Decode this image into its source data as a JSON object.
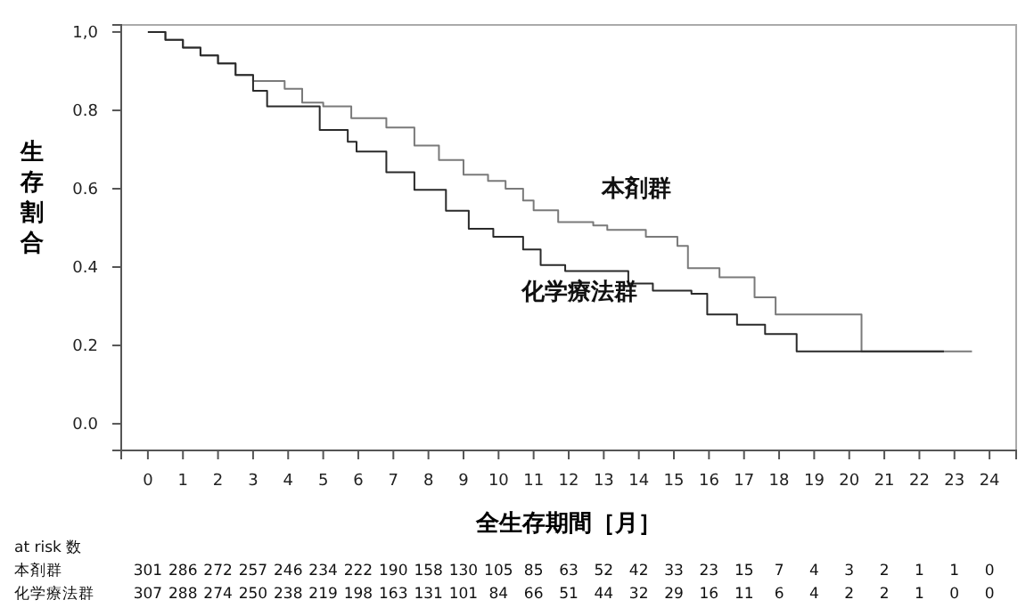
{
  "chart_data": {
    "type": "step",
    "xlabel": "全生存期間［月］",
    "ylabel": "生存割合",
    "xlim": [
      -0.76,
      24.76
    ],
    "ylim": [
      -0.068,
      1.018
    ],
    "xticks": [
      0,
      1,
      2,
      3,
      4,
      5,
      6,
      7,
      8,
      9,
      10,
      11,
      12,
      13,
      14,
      15,
      16,
      17,
      18,
      19,
      20,
      21,
      22,
      23,
      24
    ],
    "yticks": [
      {
        "value": 0,
        "label": "0.0"
      },
      {
        "value": 0.2,
        "label": "0.2"
      },
      {
        "value": 0.4,
        "label": "0.4"
      },
      {
        "value": 0.6,
        "label": "0.6"
      },
      {
        "value": 0.8,
        "label": "0.8"
      },
      {
        "value": 1,
        "label": "1,0"
      }
    ],
    "grid": false,
    "series": [
      {
        "name": "本剤群",
        "color": "#7a7a7a",
        "x": [
          0,
          0.5,
          1,
          1.5,
          2,
          2.5,
          3,
          3.9,
          4.4,
          5,
          5.8,
          6.8,
          7.6,
          8.3,
          9,
          9.7,
          10.2,
          10.7,
          11,
          11.7,
          12.7,
          13.1,
          14.2,
          15.1,
          15.4,
          16.3,
          17.3,
          17.9,
          20.35,
          23.5
        ],
        "values": [
          1,
          0.98,
          0.96,
          0.94,
          0.92,
          0.89,
          0.875,
          0.855,
          0.82,
          0.81,
          0.78,
          0.756,
          0.71,
          0.673,
          0.636,
          0.62,
          0.6,
          0.57,
          0.545,
          0.515,
          0.506,
          0.495,
          0.477,
          0.454,
          0.397,
          0.374,
          0.323,
          0.279,
          0.185,
          0.185
        ]
      },
      {
        "name": "化学療法群",
        "color": "#2a2a2a",
        "x": [
          0,
          0.5,
          1,
          1.5,
          2,
          2.5,
          3,
          3.4,
          4.9,
          5.7,
          5.95,
          6.8,
          7.6,
          8.5,
          9.15,
          9.85,
          10.7,
          11.2,
          11.9,
          13.7,
          14.4,
          15.5,
          15.95,
          16.8,
          17.6,
          18.5,
          22.7
        ],
        "values": [
          1,
          0.98,
          0.96,
          0.94,
          0.92,
          0.89,
          0.85,
          0.81,
          0.75,
          0.72,
          0.695,
          0.642,
          0.597,
          0.544,
          0.498,
          0.477,
          0.445,
          0.405,
          0.39,
          0.358,
          0.34,
          0.332,
          0.279,
          0.253,
          0.229,
          0.185,
          0.185
        ]
      }
    ],
    "annotations": [
      "at risk 数",
      "本剤群 301 286 272 257 246 234 222 190 158 130 105 85 63 52 42 33 23 15 7 4 3 2 1 1 0",
      "化学療法群 307 288 274 250 238 219 198 163 131 101 84 66 51 44 32 29 16 11 6 4 2 2 1 0 0"
    ]
  }
}
